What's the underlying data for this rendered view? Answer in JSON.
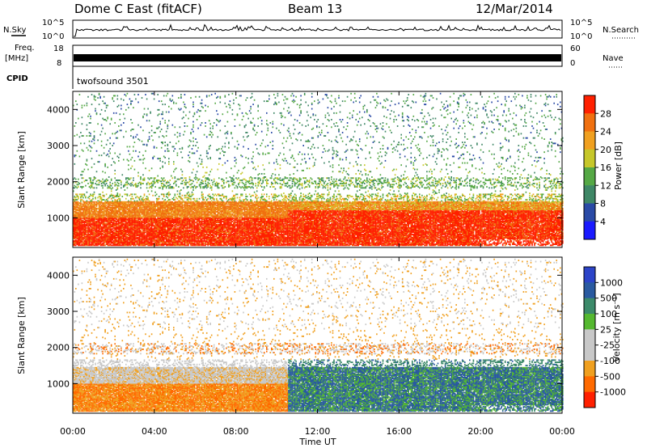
{
  "header": {
    "radar_title": "Dome C East (fitACF)",
    "beam": "Beam 13",
    "date": "12/Mar/2014"
  },
  "strips": {
    "nsky_label": "N.Sky",
    "nsky_top": "10^5",
    "nsky_bottom": "10^0",
    "nsearch_label": "N.Search",
    "nsearch_top": "10^5",
    "nsearch_bottom": "10^0",
    "freq_label": "Freq.",
    "freq_unit": "[MHz]",
    "freq_top": "18",
    "freq_bottom": "8",
    "nave_label": "Nave",
    "nave_top": "60",
    "nave_bottom": "0",
    "cpid_label": "CPID",
    "cpid_value": "twofsound 3501"
  },
  "chart_data": [
    {
      "type": "heatmap",
      "panel": "power",
      "ylabel": "Slant Range [km]",
      "xlabel": "",
      "ylim": [
        180,
        4500
      ],
      "yticks": [
        1000,
        2000,
        3000,
        4000
      ],
      "colorbar_label": "Power [dB]",
      "colorbar_ticks": [
        "4",
        "8",
        "12",
        "16",
        "20",
        "24",
        "28"
      ],
      "colorbar_colors": [
        "#1a1aff",
        "#2a4aa6",
        "#3f8766",
        "#55a845",
        "#c6c72a",
        "#f0a020",
        "#f07010",
        "#ff2000"
      ],
      "bands": [
        {
          "range": [
            230,
            1450
          ],
          "level": 28
        },
        {
          "range": [
            1500,
            1650
          ],
          "level": 16
        },
        {
          "range": [
            1800,
            2100
          ],
          "level": 12
        },
        {
          "range": [
            2500,
            4400
          ],
          "level": 8
        }
      ]
    },
    {
      "type": "heatmap",
      "panel": "velocity",
      "ylabel": "Slant Range [km]",
      "xlabel": "Time UT",
      "ylim": [
        180,
        4500
      ],
      "yticks": [
        1000,
        2000,
        3000,
        4000
      ],
      "xticks": [
        "00:00",
        "04:00",
        "08:00",
        "12:00",
        "16:00",
        "20:00",
        "00:00"
      ],
      "colorbar_label": "Velocity [m s⁻¹]",
      "colorbar_ticks": [
        "1000",
        "500",
        "100",
        "25",
        "-25",
        "-100",
        "-500",
        "-1000"
      ],
      "colorbar_colors": [
        "#2c44c8",
        "#2a5aa0",
        "#3c8a6a",
        "#55b830",
        "#c8c8c8",
        "#c8c8c8",
        "#f0a020",
        "#ff6a00",
        "#ff2000"
      ],
      "bands": [
        {
          "hours": [
            0,
            10.5
          ],
          "range": [
            230,
            1000
          ],
          "velocity": -100
        },
        {
          "hours": [
            0,
            10.5
          ],
          "range": [
            1100,
            1600
          ],
          "velocity": 0
        },
        {
          "hours": [
            10.5,
            24
          ],
          "range": [
            230,
            1600
          ],
          "velocity": 300
        }
      ]
    }
  ]
}
